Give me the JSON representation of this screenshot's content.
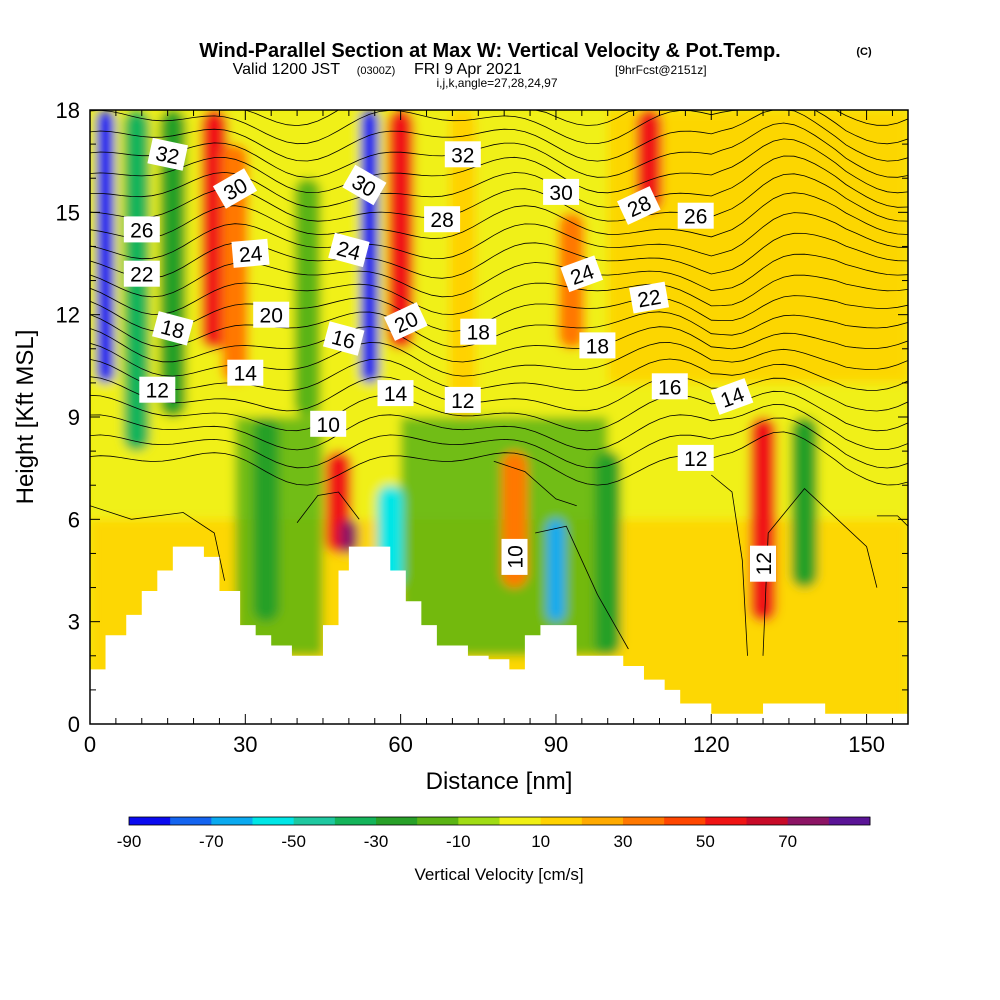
{
  "title": {
    "main": "Wind-Parallel Section at Max W: Vertical Velocity & Pot.Temp.",
    "copyright": "(C)",
    "valid_prefix": "Valid 1200 JST",
    "valid_utc": "(0300Z)",
    "valid_date": "FRI 9 Apr 2021",
    "forecast": "[9hrFcst@2151z]",
    "indices": "i,j,k,angle=27,28,24,97"
  },
  "chart_data": {
    "type": "heatmap",
    "xlabel": "Distance [nm]",
    "ylabel": "Height [Kft MSL]",
    "xlim": [
      0,
      158
    ],
    "ylim": [
      0,
      18
    ],
    "x_ticks": [
      0,
      30,
      60,
      90,
      120,
      150
    ],
    "y_ticks": [
      0,
      3,
      6,
      9,
      12,
      15,
      18
    ],
    "colorbar": {
      "label": "Vertical Velocity [cm/s]",
      "tick_labels": [
        -90,
        -70,
        -50,
        -30,
        -10,
        10,
        30,
        50,
        70
      ],
      "levels": [
        -90,
        -80,
        -70,
        -60,
        -50,
        -40,
        -30,
        -20,
        -10,
        0,
        10,
        20,
        30,
        40,
        50,
        60,
        70,
        80
      ],
      "colors": [
        "#0a0af0",
        "#1464f0",
        "#0aaaf0",
        "#00e6e6",
        "#1ec8a0",
        "#14b45a",
        "#28a028",
        "#5ab414",
        "#a0dc14",
        "#f0f014",
        "#ffd200",
        "#ffaa00",
        "#ff7800",
        "#ff4600",
        "#f01414",
        "#c80a28",
        "#8c1464",
        "#5a1496"
      ]
    },
    "velocity_features": [
      {
        "x": 3,
        "y_range": [
          10,
          18
        ],
        "w": -85
      },
      {
        "x": 9,
        "y_range": [
          8,
          18
        ],
        "w": -40
      },
      {
        "x": 16,
        "y_range": [
          9,
          18
        ],
        "w": -25
      },
      {
        "x": 24,
        "y_range": [
          11,
          18
        ],
        "w": 55
      },
      {
        "x": 28,
        "y_range": [
          10,
          17
        ],
        "w": 35
      },
      {
        "x": 34,
        "y_range": [
          3,
          9
        ],
        "w": -30
      },
      {
        "x": 42,
        "y_range": [
          9,
          16
        ],
        "w": -20
      },
      {
        "x": 48,
        "y_range": [
          5,
          8
        ],
        "w": 55
      },
      {
        "x": 50,
        "y_range": [
          5,
          6
        ],
        "w": 75
      },
      {
        "x": 54,
        "y_range": [
          10,
          18
        ],
        "w": -85
      },
      {
        "x": 60,
        "y_range": [
          11,
          18
        ],
        "w": 50
      },
      {
        "x": 58,
        "y_range": [
          4,
          7
        ],
        "w": -60
      },
      {
        "x": 72,
        "y_range": [
          9,
          18
        ],
        "w": 15
      },
      {
        "x": 82,
        "y_range": [
          4,
          8
        ],
        "w": 30
      },
      {
        "x": 90,
        "y_range": [
          3,
          6
        ],
        "w": -65
      },
      {
        "x": 93,
        "y_range": [
          11,
          15
        ],
        "w": 30
      },
      {
        "x": 100,
        "y_range": [
          2,
          8
        ],
        "w": -30
      },
      {
        "x": 108,
        "y_range": [
          15,
          18
        ],
        "w": 50
      },
      {
        "x": 130,
        "y_range": [
          3,
          9
        ],
        "w": 55
      },
      {
        "x": 138,
        "y_range": [
          4,
          9
        ],
        "w": -30
      }
    ],
    "theta_contour_labels": [
      {
        "text": "32",
        "x": 15,
        "y": 16.7,
        "rot": 12
      },
      {
        "text": "30",
        "x": 28,
        "y": 15.7,
        "rot": -30
      },
      {
        "text": "26",
        "x": 10,
        "y": 14.5,
        "rot": 0
      },
      {
        "text": "24",
        "x": 31,
        "y": 13.8,
        "rot": -5
      },
      {
        "text": "22",
        "x": 10,
        "y": 13.2,
        "rot": 0
      },
      {
        "text": "20",
        "x": 35,
        "y": 12.0,
        "rot": 0
      },
      {
        "text": "18",
        "x": 16,
        "y": 11.6,
        "rot": 15
      },
      {
        "text": "14",
        "x": 30,
        "y": 10.3,
        "rot": 0
      },
      {
        "text": "12",
        "x": 13,
        "y": 9.8,
        "rot": 0
      },
      {
        "text": "32",
        "x": 72,
        "y": 16.7,
        "rot": 0
      },
      {
        "text": "30",
        "x": 53,
        "y": 15.8,
        "rot": 30
      },
      {
        "text": "28",
        "x": 68,
        "y": 14.8,
        "rot": 0
      },
      {
        "text": "24",
        "x": 50,
        "y": 13.9,
        "rot": 15
      },
      {
        "text": "16",
        "x": 49,
        "y": 11.3,
        "rot": 15
      },
      {
        "text": "20",
        "x": 61,
        "y": 11.8,
        "rot": -25
      },
      {
        "text": "18",
        "x": 75,
        "y": 11.5,
        "rot": 0
      },
      {
        "text": "14",
        "x": 59,
        "y": 9.7,
        "rot": 0
      },
      {
        "text": "12",
        "x": 72,
        "y": 9.5,
        "rot": 0
      },
      {
        "text": "10",
        "x": 46,
        "y": 8.8,
        "rot": 0
      },
      {
        "text": "30",
        "x": 91,
        "y": 15.6,
        "rot": 0
      },
      {
        "text": "28",
        "x": 106,
        "y": 15.2,
        "rot": -25
      },
      {
        "text": "26",
        "x": 117,
        "y": 14.9,
        "rot": 0
      },
      {
        "text": "24",
        "x": 95,
        "y": 13.2,
        "rot": -20
      },
      {
        "text": "22",
        "x": 108,
        "y": 12.5,
        "rot": -10
      },
      {
        "text": "18",
        "x": 98,
        "y": 11.1,
        "rot": 0
      },
      {
        "text": "16",
        "x": 112,
        "y": 9.9,
        "rot": 0
      },
      {
        "text": "14",
        "x": 124,
        "y": 9.6,
        "rot": -20
      },
      {
        "text": "12",
        "x": 117,
        "y": 7.8,
        "rot": 0
      },
      {
        "text": "10",
        "x": 82,
        "y": 4.9,
        "rot": -90
      },
      {
        "text": "12",
        "x": 130,
        "y": 4.7,
        "rot": -90
      }
    ],
    "terrain": [
      [
        0,
        1.6
      ],
      [
        3,
        2.6
      ],
      [
        7,
        3.2
      ],
      [
        10,
        3.9
      ],
      [
        13,
        4.5
      ],
      [
        16,
        5.2
      ],
      [
        22,
        4.9
      ],
      [
        25,
        3.9
      ],
      [
        29,
        2.9
      ],
      [
        32,
        2.6
      ],
      [
        35,
        2.3
      ],
      [
        39,
        2.0
      ],
      [
        45,
        2.9
      ],
      [
        48,
        4.5
      ],
      [
        50,
        5.2
      ],
      [
        58,
        4.5
      ],
      [
        61,
        3.6
      ],
      [
        64,
        2.9
      ],
      [
        67,
        2.3
      ],
      [
        73,
        2.0
      ],
      [
        77,
        1.9
      ],
      [
        81,
        1.6
      ],
      [
        84,
        2.6
      ],
      [
        87,
        2.9
      ],
      [
        94,
        2.0
      ],
      [
        103,
        1.7
      ],
      [
        107,
        1.3
      ],
      [
        111,
        1.0
      ],
      [
        114,
        0.6
      ],
      [
        120,
        0.3
      ],
      [
        130,
        0.6
      ],
      [
        142,
        0.3
      ],
      [
        150,
        0.3
      ],
      [
        156,
        0.3
      ],
      [
        158,
        0.3
      ]
    ]
  }
}
